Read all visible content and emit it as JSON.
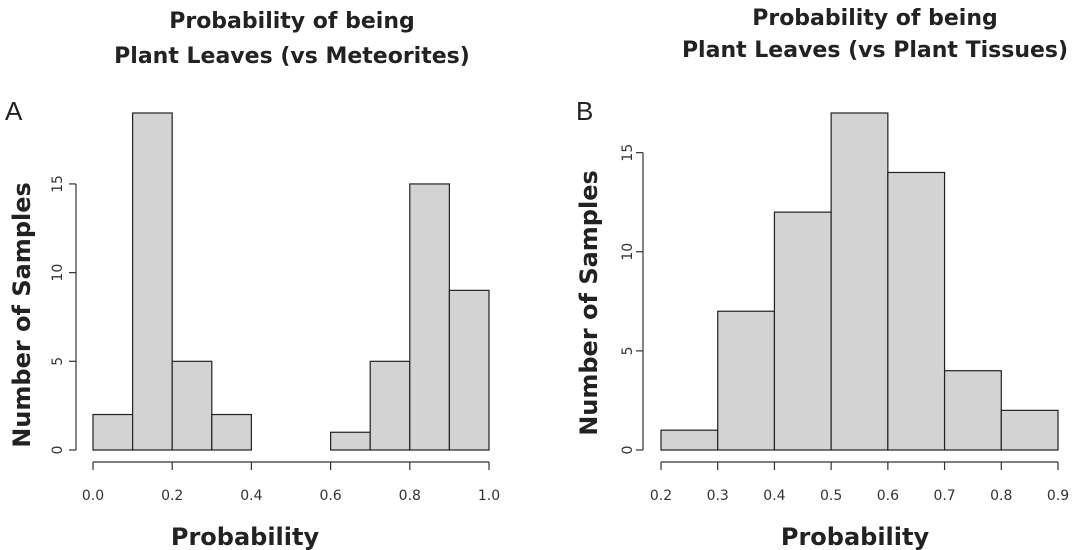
{
  "chart_data": [
    {
      "type": "bar",
      "panel_label": "A",
      "title_lines": [
        "Probability of being",
        "Plant Leaves (vs Meteorites)"
      ],
      "xlabel": "Probability",
      "ylabel": "Number of Samples",
      "bin_edges": [
        0.0,
        0.1,
        0.2,
        0.3,
        0.4,
        0.5,
        0.6,
        0.7,
        0.8,
        0.9,
        1.0
      ],
      "values": [
        2,
        19,
        5,
        2,
        0,
        0,
        1,
        5,
        15,
        9
      ],
      "xlim": [
        0.0,
        1.0
      ],
      "ylim": [
        0,
        19
      ],
      "x_ticks": [
        "0.0",
        "0.2",
        "0.4",
        "0.6",
        "0.8",
        "1.0"
      ],
      "y_ticks": [
        "0",
        "5",
        "10",
        "15"
      ],
      "grid": false
    },
    {
      "type": "bar",
      "panel_label": "B",
      "title_lines": [
        "Probability of being",
        "Plant Leaves (vs Plant Tissues)"
      ],
      "xlabel": "Probability",
      "ylabel": "Number of Samples",
      "bin_edges": [
        0.2,
        0.3,
        0.4,
        0.5,
        0.6,
        0.7,
        0.8,
        0.9
      ],
      "values": [
        1,
        7,
        12,
        17,
        14,
        4,
        2
      ],
      "xlim": [
        0.2,
        0.9
      ],
      "ylim": [
        0,
        17
      ],
      "x_ticks": [
        "0.2",
        "0.3",
        "0.4",
        "0.5",
        "0.6",
        "0.7",
        "0.8",
        "0.9"
      ],
      "y_ticks": [
        "0",
        "5",
        "10",
        "15"
      ],
      "grid": false
    }
  ]
}
